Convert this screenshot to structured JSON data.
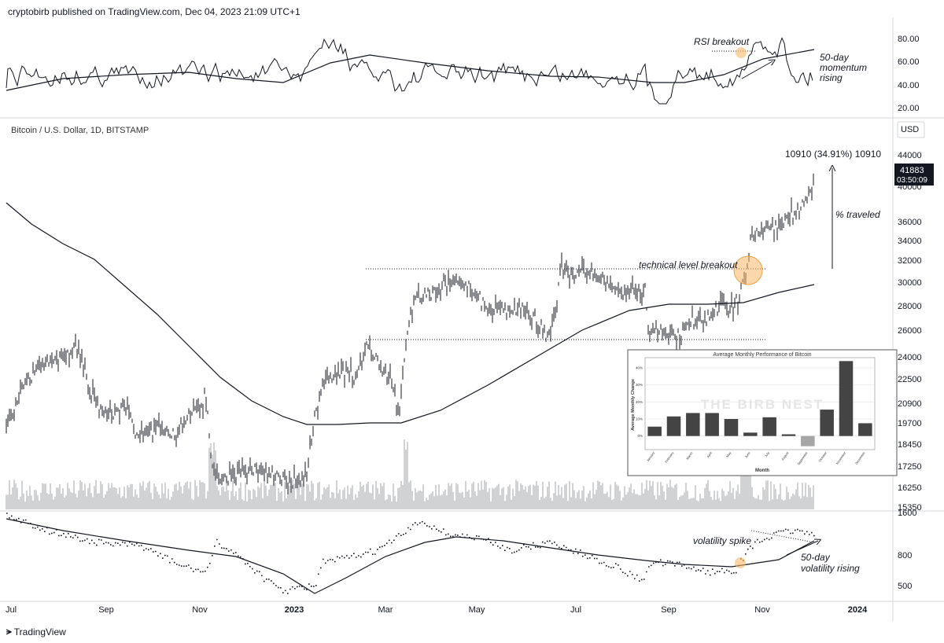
{
  "header": {
    "published_text": "cryptobirb published on TradingView.com, Dec 04, 2023 21:09 UTC+1"
  },
  "rsi_panel": {
    "axis_ticks": [
      "80.00",
      "60.00",
      "40.00",
      "20.00"
    ],
    "annotations": {
      "breakout": "RSI breakout",
      "momentum_line1": "50-day",
      "momentum_line2": "momentum",
      "momentum_line3": "rising"
    }
  },
  "price_panel": {
    "symbol": "Bitcoin / U.S. Dollar, 1D, BITSTAMP",
    "currency": "USD",
    "price_ticks": [
      "44000",
      "40000",
      "36000",
      "34000",
      "32000",
      "30000",
      "28000",
      "26000",
      "24000",
      "22500",
      "20900",
      "19700",
      "18450",
      "17250",
      "16250",
      "15350"
    ],
    "last_price": "41883",
    "countdown": "03:50:09",
    "measure_label": "10910 (34.91%) 10910",
    "annotations": {
      "percent_traveled": "% traveled",
      "technical_breakout": "technical level breakout"
    }
  },
  "volatility_panel": {
    "axis_ticks": [
      "1600",
      "800",
      "500"
    ],
    "annotations": {
      "spike": "volatility spike",
      "rising_line1": "50-day",
      "rising_line2": "volatility rising"
    }
  },
  "time_axis": {
    "labels": [
      "Jul",
      "Sep",
      "Nov",
      "2023",
      "Mar",
      "May",
      "Jul",
      "Sep",
      "Nov",
      "2024"
    ]
  },
  "inset": {
    "title": "Average Monthly Performance of Bitcoin",
    "watermark": "THE BIRB NEST",
    "ylabel": "Average Monthly Change",
    "xlabel": "Month"
  },
  "footer": {
    "brand": "TradingView"
  },
  "chart_data": {
    "type": "bar",
    "title": "Average Monthly Performance of Bitcoin",
    "xlabel": "Month",
    "ylabel": "Average Monthly Change",
    "categories": [
      "January",
      "February",
      "March",
      "April",
      "May",
      "June",
      "July",
      "August",
      "September",
      "October",
      "November",
      "December"
    ],
    "values": [
      5.5,
      11.5,
      13.5,
      13.5,
      10,
      2,
      11,
      1,
      -6,
      15.5,
      44,
      7.5
    ],
    "yticks": [
      "40%",
      "30%",
      "20%",
      "10%",
      "0%"
    ],
    "ylim": [
      -8,
      46
    ],
    "grid": true
  },
  "colors": {
    "line": "#131722",
    "grid": "#e0e3eb",
    "highlight": "#f7b867",
    "volume": "#b0b3b8",
    "bar_positive": "#444444",
    "bar_negative": "#a6a6a6"
  }
}
